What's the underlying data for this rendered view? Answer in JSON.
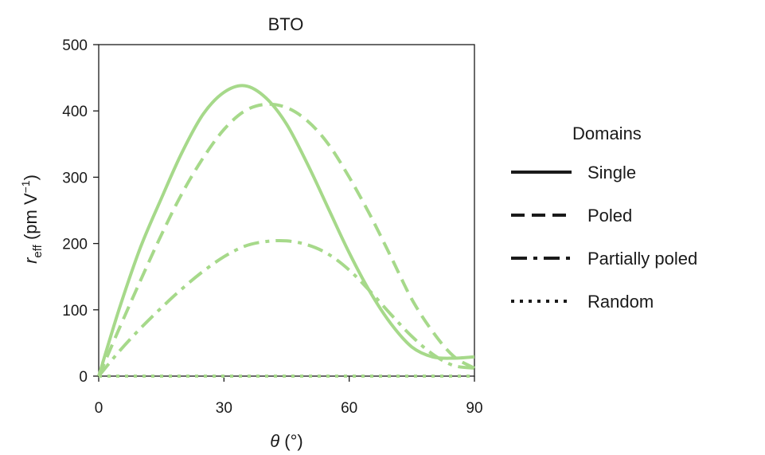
{
  "chart_data": {
    "type": "line",
    "title": "BTO",
    "xlabel": {
      "symbol": "θ",
      "unit": " (°)"
    },
    "ylabel": {
      "symbol": "r",
      "subscript": "eff",
      "unit_pre": " (pm V",
      "unit_sup": "−1",
      "unit_post": ")"
    },
    "xlim": [
      0,
      90
    ],
    "ylim": [
      0,
      500
    ],
    "xticks": [
      0,
      30,
      60,
      90
    ],
    "yticks": [
      0,
      100,
      200,
      300,
      400,
      500
    ],
    "grid": false,
    "line_color": "#a6d98a",
    "legend": {
      "title": "Domains",
      "placement": "right"
    },
    "series": [
      {
        "name": "Single",
        "style": "solid",
        "x": [
          0,
          5,
          10,
          15,
          20,
          25,
          30,
          35,
          40,
          45,
          50,
          55,
          60,
          65,
          70,
          75,
          80,
          85,
          90
        ],
        "y": [
          0,
          103,
          194,
          268,
          338,
          395,
          428,
          438,
          420,
          380,
          320,
          253,
          186,
          127,
          79,
          44,
          29,
          27,
          29
        ]
      },
      {
        "name": "Poled",
        "style": "dashed",
        "x": [
          0,
          5,
          10,
          15,
          20,
          25,
          30,
          35,
          40,
          45,
          50,
          55,
          60,
          65,
          70,
          75,
          80,
          85,
          90
        ],
        "y": [
          0,
          73,
          144,
          213,
          276,
          329,
          372,
          400,
          410,
          405,
          385,
          350,
          300,
          243,
          180,
          116,
          67,
          30,
          12
        ]
      },
      {
        "name": "Partially poled",
        "style": "dashdot",
        "x": [
          0,
          5,
          10,
          15,
          20,
          25,
          30,
          35,
          40,
          45,
          50,
          55,
          60,
          65,
          70,
          75,
          80,
          85,
          90
        ],
        "y": [
          0,
          38,
          72,
          103,
          132,
          158,
          180,
          196,
          203,
          204,
          198,
          184,
          160,
          128,
          93,
          60,
          33,
          16,
          12
        ]
      },
      {
        "name": "Random",
        "style": "dotted",
        "x": [
          0,
          90
        ],
        "y": [
          0,
          0
        ]
      }
    ]
  }
}
